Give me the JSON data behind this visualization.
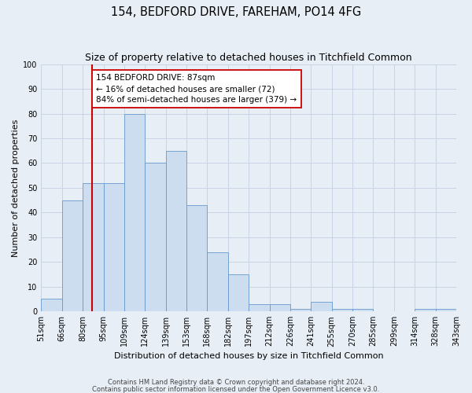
{
  "title": "154, BEDFORD DRIVE, FAREHAM, PO14 4FG",
  "subtitle": "Size of property relative to detached houses in Titchfield Common",
  "xlabel": "Distribution of detached houses by size in Titchfield Common",
  "ylabel": "Number of detached properties",
  "bar_heights": [
    5,
    45,
    52,
    52,
    80,
    60,
    65,
    43,
    24,
    15,
    3,
    3,
    1,
    4,
    1,
    1,
    0,
    0,
    1,
    1
  ],
  "bin_labels": [
    "51sqm",
    "66sqm",
    "80sqm",
    "95sqm",
    "109sqm",
    "124sqm",
    "139sqm",
    "153sqm",
    "168sqm",
    "182sqm",
    "197sqm",
    "212sqm",
    "226sqm",
    "241sqm",
    "255sqm",
    "270sqm",
    "285sqm",
    "299sqm",
    "314sqm",
    "328sqm",
    "343sqm"
  ],
  "bar_color": "#ccddf0",
  "bar_edge_color": "#6699cc",
  "grid_color": "#c8d4e4",
  "background_color": "#e8eef6",
  "vline_color": "#cc0000",
  "annotation_text": "154 BEDFORD DRIVE: 87sqm\n← 16% of detached houses are smaller (72)\n84% of semi-detached houses are larger (379) →",
  "annotation_box_color": "#ffffff",
  "annotation_box_edge": "#cc0000",
  "ylim": [
    0,
    100
  ],
  "yticks": [
    0,
    10,
    20,
    30,
    40,
    50,
    60,
    70,
    80,
    90,
    100
  ],
  "footer_line1": "Contains HM Land Registry data © Crown copyright and database right 2024.",
  "footer_line2": "Contains public sector information licensed under the Open Government Licence v3.0.",
  "title_fontsize": 10.5,
  "subtitle_fontsize": 9,
  "axis_label_fontsize": 8,
  "tick_fontsize": 7,
  "annotation_fontsize": 7.5,
  "footer_fontsize": 6
}
